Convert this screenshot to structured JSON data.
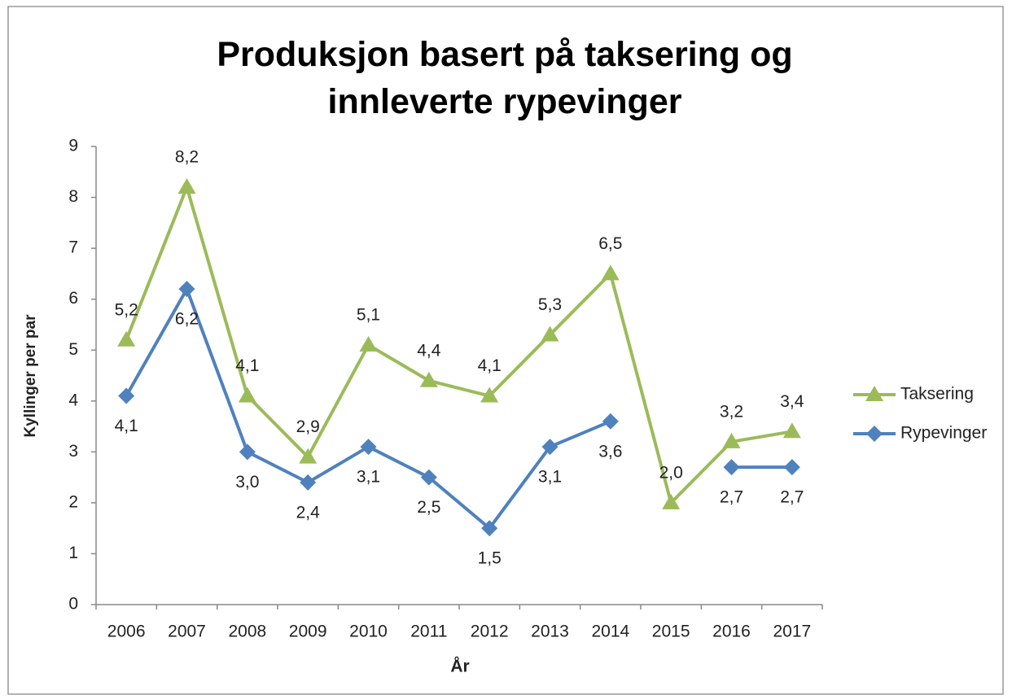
{
  "chart_data": {
    "type": "line",
    "title": "Produksjon basert på taksering og innleverte rypevinger",
    "x_label": "År",
    "y_label": "Kyllinger per par",
    "categories": [
      "2006",
      "2007",
      "2008",
      "2009",
      "2010",
      "2011",
      "2012",
      "2013",
      "2014",
      "2015",
      "2016",
      "2017"
    ],
    "series": [
      {
        "name": "Taksering",
        "color": "#9bbb59",
        "marker": "triangle",
        "label_position": "above",
        "values": [
          5.2,
          8.2,
          4.1,
          2.9,
          5.1,
          4.4,
          4.1,
          5.3,
          6.5,
          2.0,
          3.2,
          3.4
        ],
        "value_labels": [
          "5,2",
          "8,2",
          "4,1",
          "2,9",
          "5,1",
          "4,4",
          "4,1",
          "5,3",
          "6,5",
          "2,0",
          "3,2",
          "3,4"
        ]
      },
      {
        "name": "Rypevinger",
        "color": "#4f81bd",
        "marker": "diamond",
        "label_position": "below",
        "values": [
          4.1,
          6.2,
          3.0,
          2.4,
          3.1,
          2.5,
          1.5,
          3.1,
          3.6,
          null,
          2.7,
          2.7
        ],
        "value_labels": [
          "4,1",
          "6,2",
          "3,0",
          "2,4",
          "3,1",
          "2,5",
          "1,5",
          "3,1",
          "3,6",
          null,
          "2,7",
          "2,7"
        ]
      }
    ],
    "ylim": [
      0,
      9
    ],
    "yticks": [
      0,
      1,
      2,
      3,
      4,
      5,
      6,
      7,
      8,
      9
    ],
    "grid": false,
    "legend": "right"
  }
}
